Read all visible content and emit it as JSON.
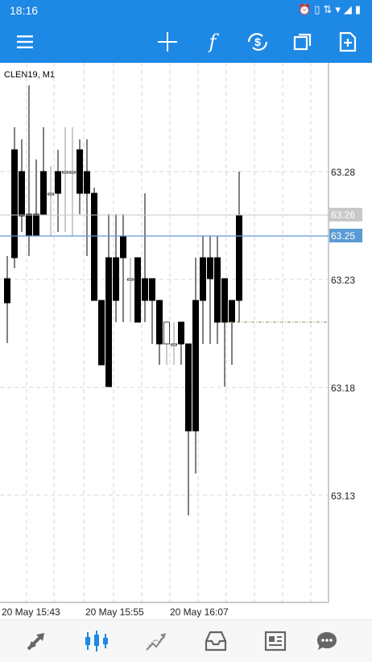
{
  "status": {
    "time": "18:16",
    "icons": [
      "alarm-icon",
      "vibrate-icon",
      "data-icon",
      "wifi-icon",
      "signal-icon",
      "battery-icon"
    ]
  },
  "toolbar": {
    "items": [
      "menu-icon",
      "crosshair-icon",
      "indicators-icon",
      "trade-icon",
      "windows-icon",
      "new-chart-icon"
    ],
    "accent": "#1e88e5"
  },
  "chart": {
    "symbol_label": "CLEN19, M1",
    "price_labels": [
      "63.28",
      "63.23",
      "63.18",
      "63.13"
    ],
    "bid_label": "63.26",
    "ask_label": "63.25",
    "time_labels": [
      "20 May 15:43",
      "20 May 15:55",
      "20 May 16:07"
    ],
    "colors": {
      "bid": "#c8c8c8",
      "ask": "#5b9bd5",
      "grid": "#d7d7d7",
      "bear": "#000000",
      "bull": "#ffffff"
    }
  },
  "bottom_nav": {
    "items": [
      "quotes-icon",
      "chart-icon",
      "trade-icon",
      "history-icon",
      "news-icon",
      "messages-icon"
    ],
    "active": "chart-icon"
  }
}
